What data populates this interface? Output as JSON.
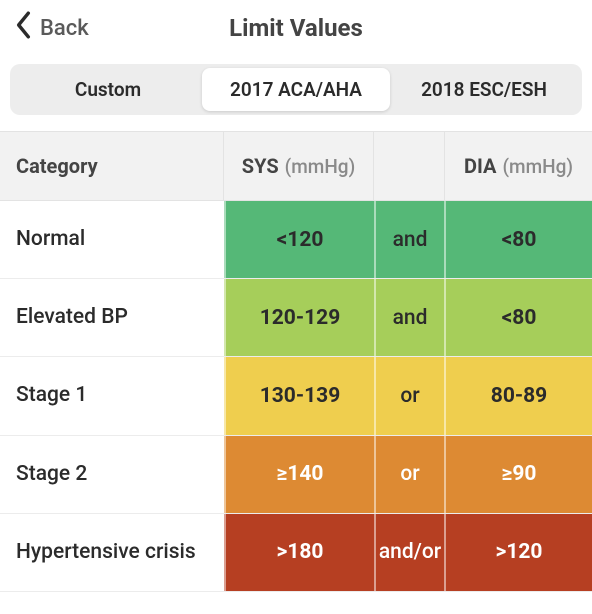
{
  "nav": {
    "back_label": "Back",
    "title": "Limit Values"
  },
  "tabs": [
    {
      "label": "Custom",
      "active": false
    },
    {
      "label": "2017 ACA/AHA",
      "active": true
    },
    {
      "label": "2018 ESC/ESH",
      "active": false
    }
  ],
  "table": {
    "header": {
      "category_label": "Category",
      "sys_label": "SYS",
      "sys_unit": "(mmHg)",
      "dia_label": "DIA",
      "dia_unit": "(mmHg)"
    },
    "rows": [
      {
        "category": "Normal",
        "sys": "<120",
        "conj": "and",
        "dia": "<80",
        "bg": "#55b877",
        "text_light": false
      },
      {
        "category": "Elevated BP",
        "sys": "120-129",
        "conj": "and",
        "dia": "<80",
        "bg": "#a6ce5a",
        "text_light": false
      },
      {
        "category": "Stage 1",
        "sys": "130-139",
        "conj": "or",
        "dia": "80-89",
        "bg": "#efce4e",
        "text_light": false
      },
      {
        "category": "Stage 2",
        "sys": "≥140",
        "conj": "or",
        "dia": "≥90",
        "bg": "#dd8a33",
        "text_light": true
      },
      {
        "category": "Hypertensive crisis",
        "sys": ">180",
        "conj": "and/or",
        "dia": ">120",
        "bg": "#b63f22",
        "text_light": true
      }
    ]
  },
  "colors": {
    "header_bg": "#f2f2f2",
    "border": "#e3e3e3",
    "seg_bg": "#ededed"
  }
}
